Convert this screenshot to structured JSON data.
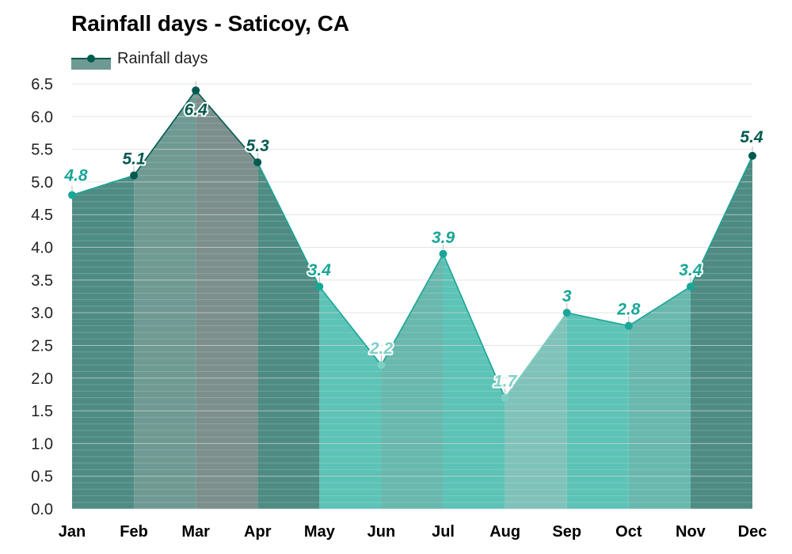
{
  "title": "Rainfall days - Saticoy, CA",
  "legend": {
    "label": "Rainfall days"
  },
  "colors": {
    "line_dark": "#005a4f",
    "line_mid": "#19a697",
    "line_light": "#7fcfc6",
    "fill_palette": [
      "#6e9a93",
      "#4e8c83",
      "#7c8f8c",
      "#68b8ae",
      "#5cc3b6",
      "#b3dcd7",
      "#c9e9e6",
      "#98d2cb",
      "#7fc2b9"
    ]
  },
  "chart_data": {
    "type": "area",
    "title": "Rainfall days - Saticoy, CA",
    "xlabel": "",
    "ylabel": "",
    "categories": [
      "Jan",
      "Feb",
      "Mar",
      "Apr",
      "May",
      "Jun",
      "Jul",
      "Aug",
      "Sep",
      "Oct",
      "Nov",
      "Dec"
    ],
    "series": [
      {
        "name": "Rainfall days",
        "values": [
          4.8,
          5.1,
          6.4,
          5.3,
          3.4,
          2.2,
          3.9,
          1.7,
          3.0,
          2.8,
          3.4,
          5.4
        ]
      }
    ],
    "data_labels": [
      "4.8",
      "5.1",
      "6.4",
      "5.3",
      "3.4",
      "2.2",
      "3.9",
      "1.7",
      "3",
      "2.8",
      "3.4",
      "5.4"
    ],
    "yticks": [
      "0.0",
      "0.5",
      "1.0",
      "1.5",
      "2.0",
      "2.5",
      "3.0",
      "3.5",
      "4.0",
      "4.5",
      "5.0",
      "5.5",
      "6.0",
      "6.5"
    ],
    "ylim": [
      0,
      6.5
    ],
    "grid": true,
    "legend_position": "top-left"
  }
}
